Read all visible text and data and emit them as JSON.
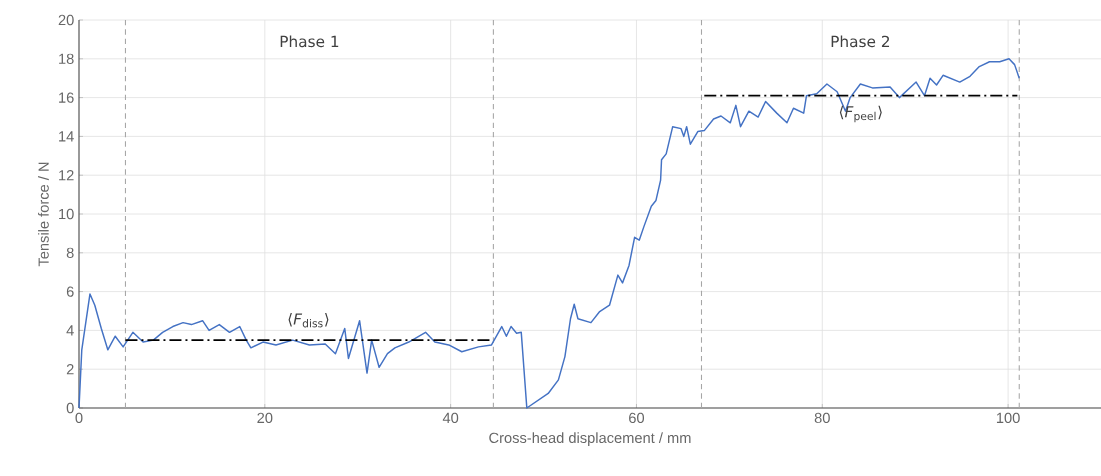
{
  "chart_data": {
    "type": "line",
    "xlabel": "Cross-head displacement / mm",
    "ylabel": "Tensile force / N",
    "xlim": [
      0,
      110
    ],
    "xticks": [
      0,
      20,
      40,
      60,
      80,
      100
    ],
    "ylim": [
      0,
      20
    ],
    "yticks": [
      0,
      2,
      4,
      6,
      8,
      10,
      12,
      14,
      16,
      18,
      20
    ],
    "grid": true,
    "series": [
      {
        "color": "#4472c4",
        "x": [
          0,
          0.3,
          1.18,
          1.7,
          2.4,
          3.1,
          3.9,
          4.75,
          5.8,
          6.9,
          8.0,
          9.0,
          10.1,
          11.2,
          12.1,
          13.3,
          14.0,
          15.1,
          16.2,
          17.3,
          18.0,
          18.5,
          19.8,
          21.2,
          23.0,
          24.8,
          26.5,
          27.6,
          28.6,
          29.0,
          30.2,
          31.0,
          31.5,
          32.3,
          33.2,
          34.0,
          35.5,
          37.3,
          38.3,
          39.8,
          41.2,
          43.0,
          44.4,
          45.5,
          46.0,
          46.5,
          47.1,
          47.6,
          48.2,
          50.5,
          51.6,
          52.3,
          52.9,
          53.3,
          53.7,
          55.1,
          56.0,
          57.1,
          58.0,
          58.5,
          59.2,
          59.8,
          60.3,
          60.8,
          61.6,
          62.1,
          62.6,
          62.7,
          63.2,
          63.9,
          64.8,
          65.1,
          65.4,
          65.8,
          66.6,
          67.3,
          68.3,
          69.1,
          70.1,
          70.7,
          71.2,
          72.1,
          73.1,
          73.9,
          75.1,
          76.2,
          76.9,
          78.0,
          78.3,
          79.4,
          80.5,
          81.6,
          82.5,
          83.0,
          84.1,
          85.4,
          87.3,
          88.3,
          90.1,
          91.0,
          91.6,
          92.3,
          93.0,
          94.8,
          95.9,
          96.9,
          98.0,
          99.1,
          100.1,
          100.7,
          101.2
        ],
        "values": [
          0,
          3.0,
          5.88,
          5.3,
          4.1,
          3.0,
          3.7,
          3.15,
          3.9,
          3.4,
          3.5,
          3.9,
          4.2,
          4.4,
          4.3,
          4.5,
          4.0,
          4.3,
          3.9,
          4.2,
          3.5,
          3.1,
          3.4,
          3.25,
          3.5,
          3.25,
          3.3,
          2.8,
          4.1,
          2.55,
          4.5,
          1.8,
          3.5,
          2.1,
          2.8,
          3.1,
          3.4,
          3.9,
          3.4,
          3.25,
          2.9,
          3.15,
          3.25,
          4.2,
          3.7,
          4.2,
          3.85,
          3.9,
          0,
          0.75,
          1.45,
          2.65,
          4.6,
          5.35,
          4.6,
          4.4,
          4.95,
          5.3,
          6.85,
          6.45,
          7.35,
          8.8,
          8.65,
          9.35,
          10.4,
          10.7,
          11.75,
          12.8,
          13.1,
          14.5,
          14.4,
          14.0,
          14.5,
          13.6,
          14.25,
          14.3,
          14.9,
          15.05,
          14.7,
          15.6,
          14.5,
          15.3,
          15.0,
          15.8,
          15.2,
          14.7,
          15.45,
          15.2,
          16.1,
          16.2,
          16.7,
          16.3,
          15.3,
          16.0,
          16.7,
          16.5,
          16.55,
          16.0,
          16.8,
          16.1,
          17.0,
          16.65,
          17.15,
          16.8,
          17.1,
          17.6,
          17.85,
          17.85,
          18.0,
          17.7,
          17.0
        ]
      },
      {
        "color": "#000000",
        "line_style": "dashed",
        "x": [
          5.0,
          44.4
        ],
        "values": [
          3.5,
          3.5
        ]
      },
      {
        "color": "#000000",
        "line_style": "dashed",
        "x": [
          67.3,
          101.0
        ],
        "values": [
          16.1,
          16.1
        ]
      }
    ],
    "ref_lines": [
      {
        "axis": "x",
        "value": 5.0,
        "color": "#a6a6a6",
        "line_style": "dashed"
      },
      {
        "axis": "x",
        "value": 44.6,
        "color": "#a6a6a6",
        "line_style": "dashed"
      },
      {
        "axis": "x",
        "value": 67.0,
        "color": "#a6a6a6",
        "line_style": "dashed"
      },
      {
        "axis": "x",
        "value": 101.2,
        "color": "#a6a6a6",
        "line_style": "dashed"
      }
    ],
    "annotations": [
      "Phase 1",
      "Phase 2",
      "⟨*F*$_{diss}$⟩",
      "⟨*F*$_{peel}$⟩"
    ]
  }
}
